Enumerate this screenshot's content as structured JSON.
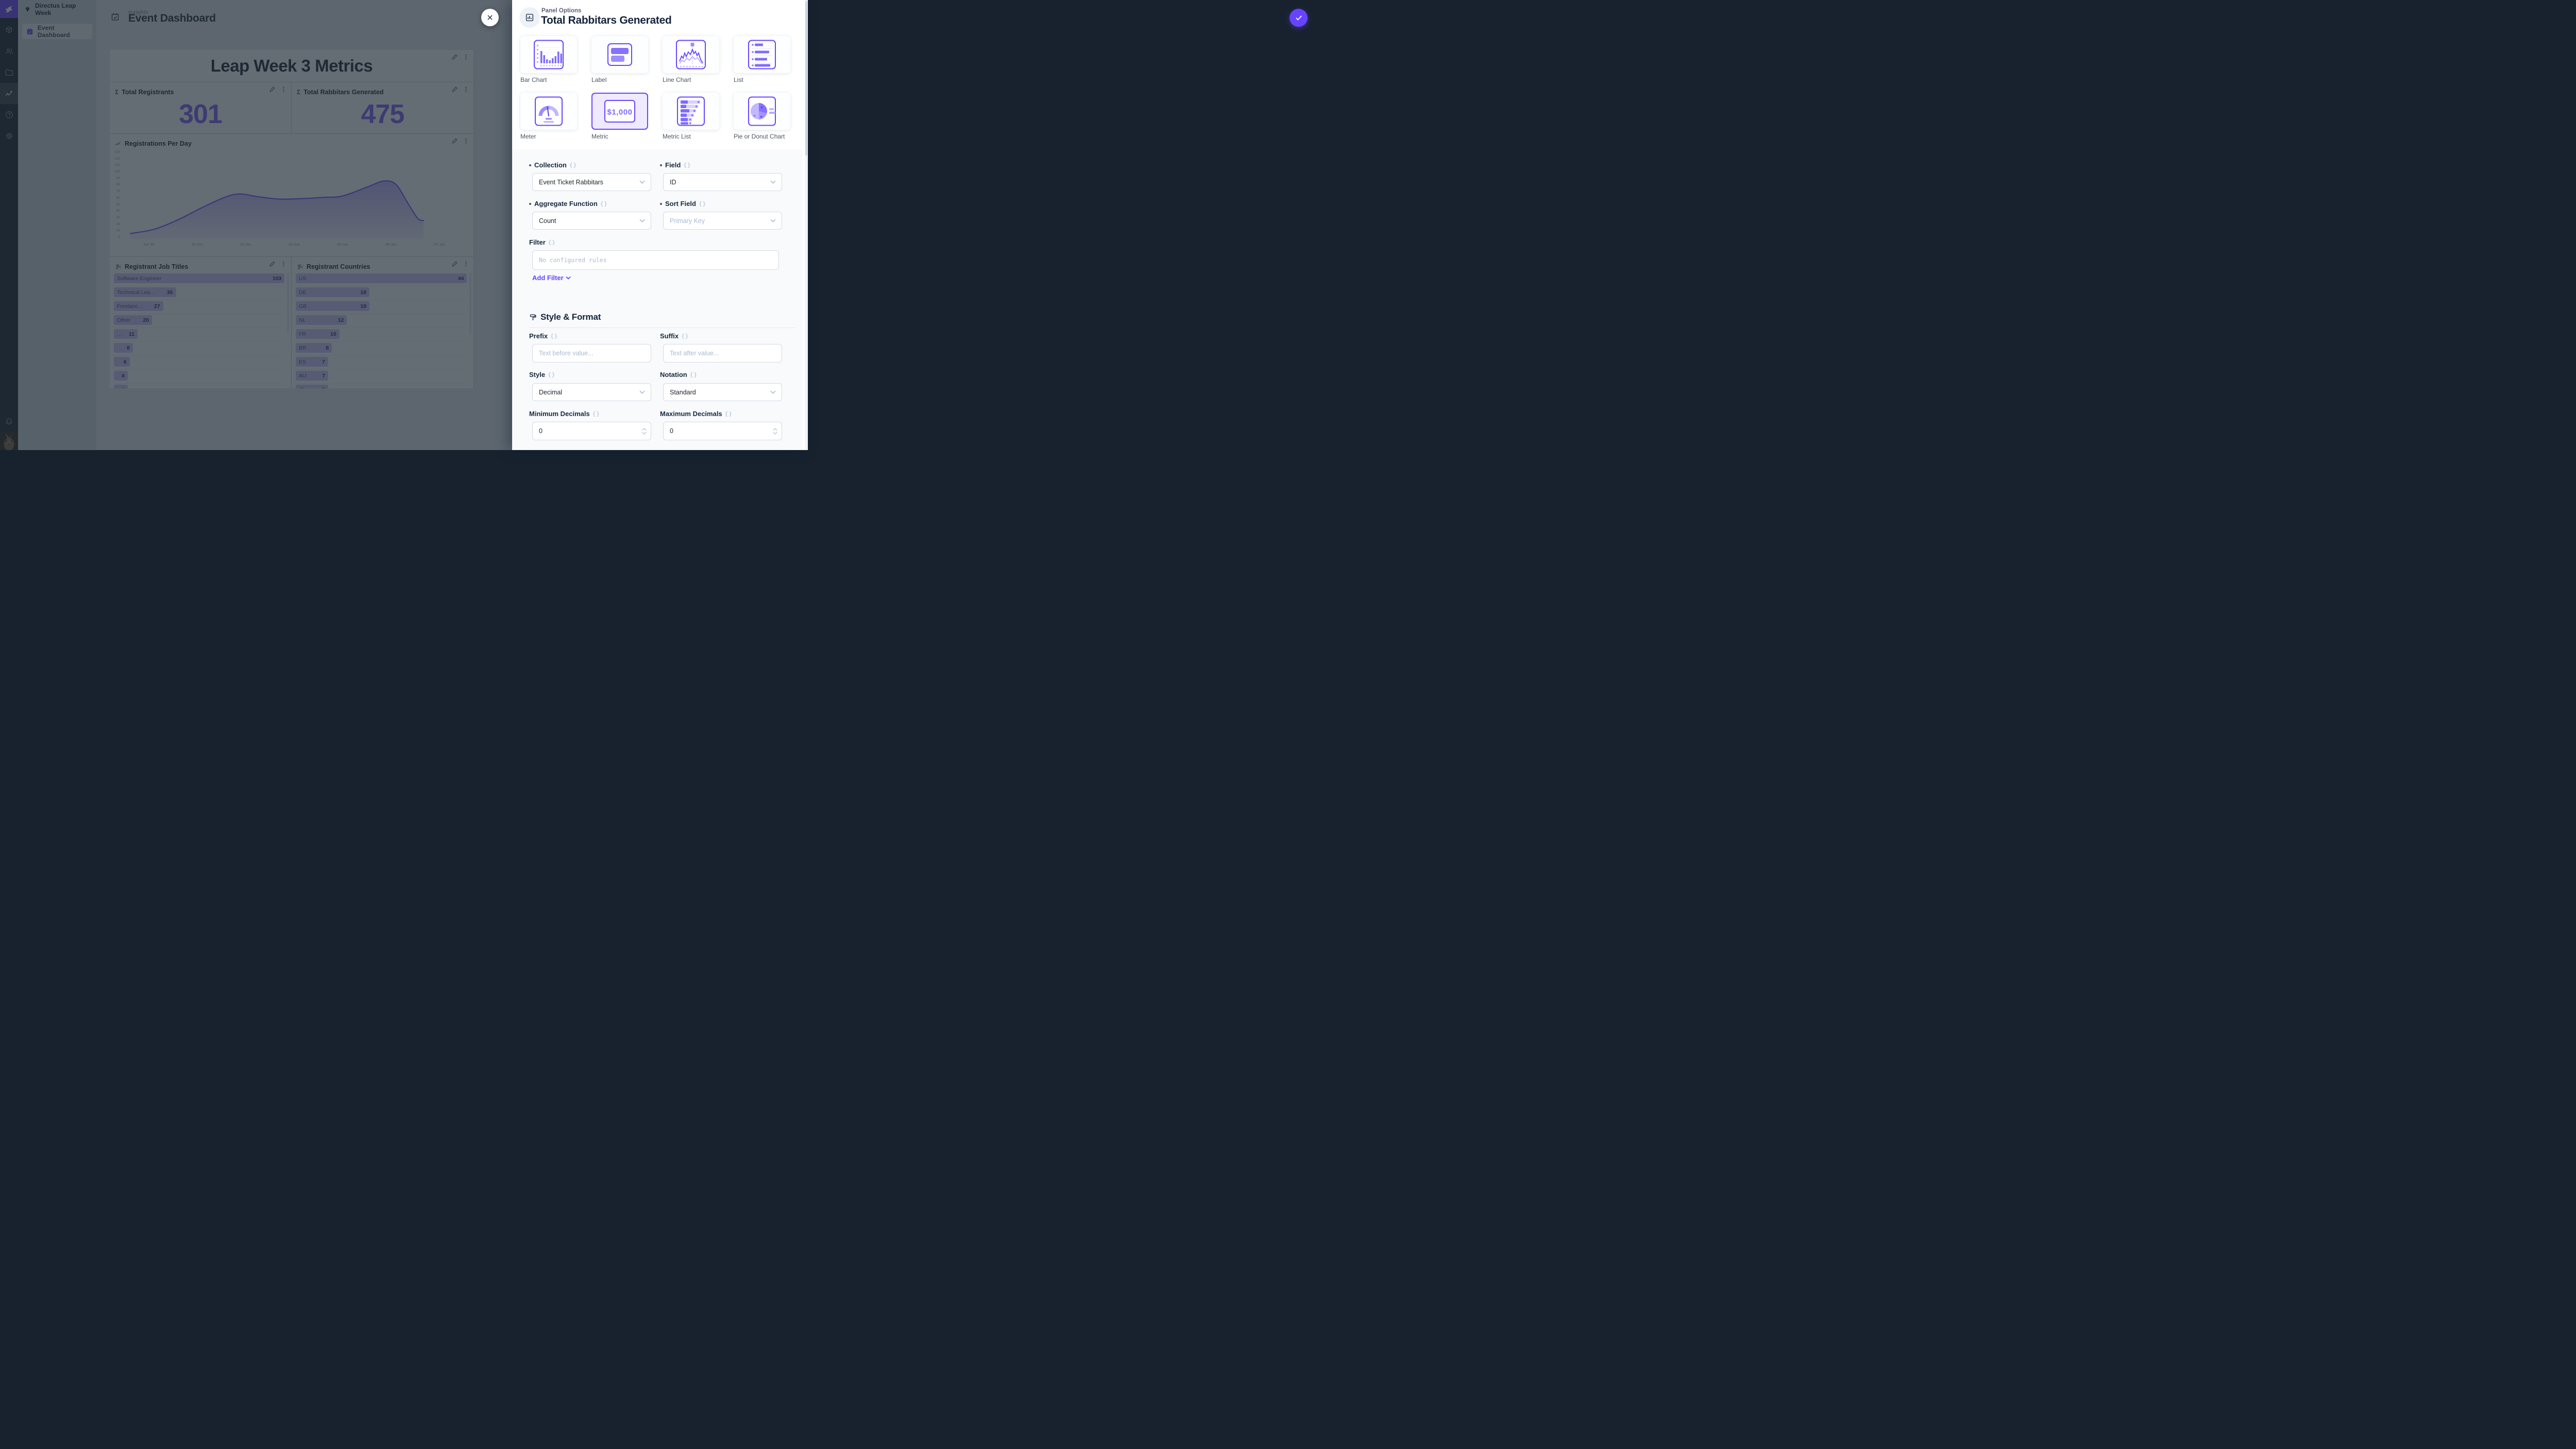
{
  "colors": {
    "accent": "#6644FF",
    "module_bar": "#18222F",
    "drawer_bg": "#FFFFFF"
  },
  "sidebar": {
    "project_name": "Directus Leap Week",
    "items": [
      {
        "label": "Event Dashboard"
      }
    ]
  },
  "module_bar": {
    "modules": [
      "content",
      "users",
      "files",
      "insights",
      "help",
      "settings"
    ],
    "active_module": "insights"
  },
  "header": {
    "kicker": "Insights",
    "title": "Event Dashboard"
  },
  "dashboard": {
    "label_panel": {
      "title": "Leap Week 3 Metrics"
    },
    "metrics": [
      {
        "title": "Total Registrants",
        "value": "301"
      },
      {
        "title": "Total Rabbitars Generated",
        "value": "475"
      }
    ],
    "chart_panel": {
      "title": "Registrations Per Day"
    },
    "lists": [
      {
        "title": "Registrant Job Titles",
        "items": [
          {
            "label": "Software Engineer",
            "value": 103
          },
          {
            "label": "Technical Lea…",
            "value": 35
          },
          {
            "label": "Freelanc…",
            "value": 27
          },
          {
            "label": "Other",
            "value": 20
          },
          {
            "label": "…",
            "value": 11
          },
          {
            "label": "",
            "value": 8
          },
          {
            "label": "",
            "value": 6
          },
          {
            "label": "",
            "value": 4
          },
          {
            "label": "",
            "value": 4
          }
        ]
      },
      {
        "title": "Registrant Countries",
        "items": [
          {
            "label": "US",
            "value": 44
          },
          {
            "label": "DE",
            "value": 18
          },
          {
            "label": "GB",
            "value": 18
          },
          {
            "label": "NL",
            "value": 12
          },
          {
            "label": "FR",
            "value": 10
          },
          {
            "label": "BR",
            "value": 8
          },
          {
            "label": "ES",
            "value": 7
          },
          {
            "label": "AU",
            "value": 7
          },
          {
            "label": "IT",
            "value": 7
          }
        ]
      }
    ]
  },
  "chart_data": {
    "type": "area",
    "title": "Registrations Per Day",
    "xlabel": "",
    "ylabel": "",
    "ylim": [
      0,
      130
    ],
    "ytick_step": 10,
    "grid": false,
    "legend": false,
    "x_ticks": [
      {
        "label": "Jun '24",
        "day": 1
      },
      {
        "label": "02 Jun",
        "day": 2
      },
      {
        "label": "03 Jun",
        "day": 3
      },
      {
        "label": "04 Jun",
        "day": 4
      },
      {
        "label": "05 Jun",
        "day": 5
      },
      {
        "label": "06 Jun",
        "day": 6
      },
      {
        "label": "07 Jun",
        "day": 7
      }
    ],
    "series_estimated_daily": [
      8,
      46,
      64,
      59,
      63,
      85,
      27
    ],
    "points": [
      [
        0.62,
        8
      ],
      [
        1.1,
        14
      ],
      [
        1.6,
        28
      ],
      [
        2.1,
        46
      ],
      [
        2.6,
        62
      ],
      [
        2.9,
        66
      ],
      [
        3.25,
        62
      ],
      [
        3.7,
        58.5
      ],
      [
        4.1,
        59
      ],
      [
        4.6,
        61
      ],
      [
        5.0,
        63
      ],
      [
        5.5,
        76
      ],
      [
        5.85,
        85
      ],
      [
        6.1,
        80
      ],
      [
        6.35,
        52
      ],
      [
        6.55,
        30
      ],
      [
        6.67,
        27
      ]
    ]
  },
  "drawer": {
    "kicker": "Panel Options",
    "title": "Total Rabbitars Generated",
    "panel_types": [
      {
        "label": "Bar Chart",
        "selected": false
      },
      {
        "label": "Label",
        "selected": false
      },
      {
        "label": "Line Chart",
        "selected": false
      },
      {
        "label": "List",
        "selected": false
      },
      {
        "label": "Meter",
        "selected": false
      },
      {
        "label": "Metric",
        "selected": true
      },
      {
        "label": "Metric List",
        "selected": false
      },
      {
        "label": "Pie or Donut Chart",
        "selected": false
      }
    ],
    "fields": {
      "collection": {
        "label": "Collection",
        "value": "Event Ticket Rabbitars",
        "required": true
      },
      "field": {
        "label": "Field",
        "value": "ID",
        "required": true
      },
      "aggregate": {
        "label": "Aggregate Function",
        "value": "Count",
        "required": true
      },
      "sort": {
        "label": "Sort Field",
        "placeholder": "Primary Key",
        "required": true
      },
      "filter": {
        "label": "Filter",
        "placeholder": "No configured rules",
        "add_label": "Add Filter"
      }
    },
    "style_section": {
      "title": "Style & Format",
      "prefix": {
        "label": "Prefix",
        "placeholder": "Text before value..."
      },
      "suffix": {
        "label": "Suffix",
        "placeholder": "Text after value..."
      },
      "style": {
        "label": "Style",
        "value": "Decimal"
      },
      "notation": {
        "label": "Notation",
        "value": "Standard"
      },
      "min_decimals": {
        "label": "Minimum Decimals",
        "value": "0"
      },
      "max_decimals": {
        "label": "Maximum Decimals",
        "value": "0"
      }
    }
  }
}
